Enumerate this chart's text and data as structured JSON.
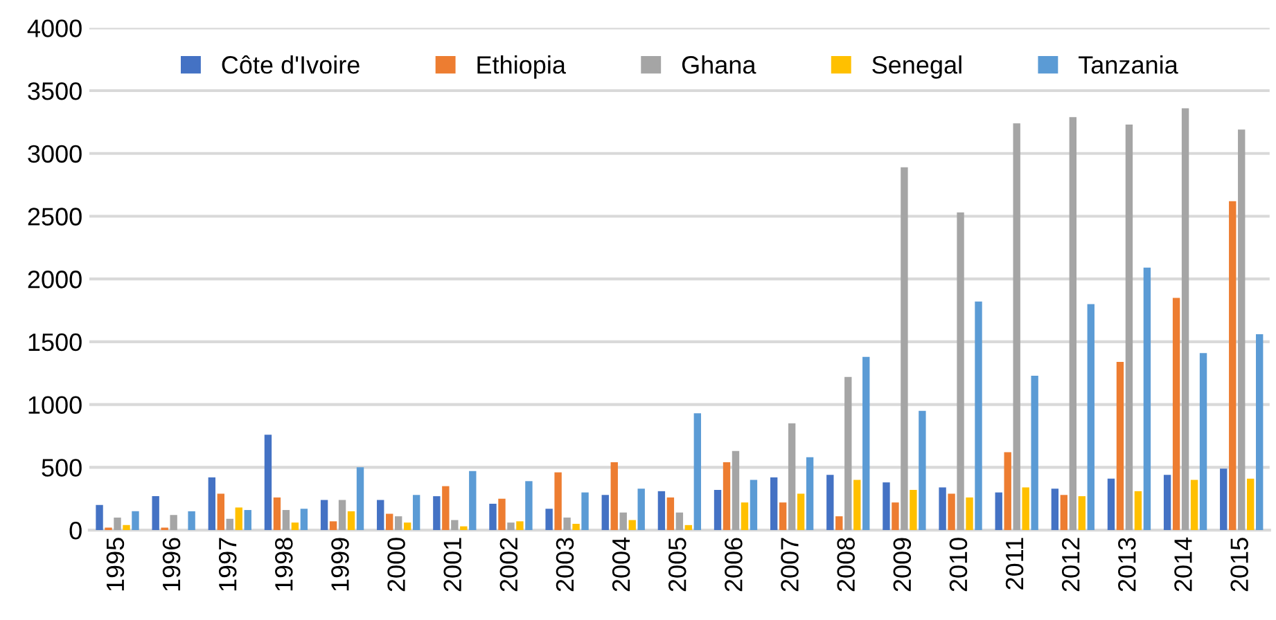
{
  "chart_data": {
    "type": "bar",
    "categories": [
      "1995",
      "1996",
      "1997",
      "1998",
      "1999",
      "2000",
      "2001",
      "2002",
      "2003",
      "2004",
      "2005",
      "2006",
      "2007",
      "2008",
      "2009",
      "2010",
      "2011",
      "2012",
      "2013",
      "2014",
      "2015"
    ],
    "series": [
      {
        "name": "Côte d'Ivoire",
        "color": "#4472c4",
        "values": [
          200,
          270,
          420,
          760,
          240,
          240,
          270,
          210,
          170,
          280,
          310,
          320,
          420,
          440,
          380,
          340,
          300,
          330,
          410,
          440,
          490
        ]
      },
      {
        "name": "Ethiopia",
        "color": "#ed7d31",
        "values": [
          20,
          20,
          290,
          260,
          70,
          130,
          350,
          250,
          460,
          540,
          260,
          540,
          220,
          110,
          220,
          290,
          620,
          280,
          1340,
          1850,
          2620
        ]
      },
      {
        "name": "Ghana",
        "color": "#a5a5a5",
        "values": [
          100,
          120,
          90,
          160,
          240,
          110,
          80,
          60,
          100,
          140,
          140,
          630,
          850,
          1220,
          2890,
          2530,
          3240,
          3290,
          3230,
          3360,
          3190
        ]
      },
      {
        "name": "Senegal",
        "color": "#ffc000",
        "values": [
          40,
          0,
          180,
          60,
          150,
          60,
          30,
          70,
          50,
          80,
          40,
          220,
          290,
          400,
          320,
          260,
          340,
          270,
          310,
          400,
          410
        ]
      },
      {
        "name": "Tanzania",
        "color": "#5b9bd5",
        "values": [
          150,
          150,
          160,
          170,
          500,
          280,
          470,
          390,
          300,
          330,
          930,
          400,
          580,
          1380,
          950,
          1820,
          1230,
          1800,
          2090,
          1410,
          1560
        ]
      }
    ],
    "ylim": [
      0,
      4000
    ],
    "yticks": [
      0,
      500,
      1000,
      1500,
      2000,
      2500,
      3000,
      3500,
      4000
    ],
    "grid": "y",
    "legend": "top"
  }
}
